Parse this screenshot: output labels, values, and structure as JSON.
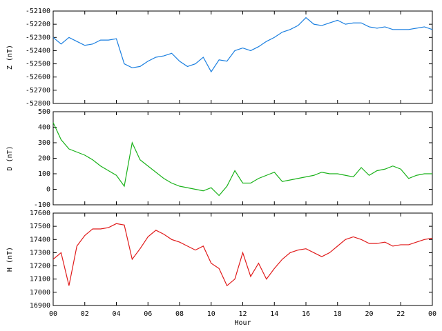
{
  "chart_data": [
    {
      "type": "line",
      "ylabel": "Z (nT)",
      "color": "#1a7fe0",
      "xlim": [
        0,
        24
      ],
      "x": [
        0,
        0.5,
        1,
        1.5,
        2,
        2.5,
        3,
        3.5,
        4,
        4.5,
        5,
        5.5,
        6,
        6.5,
        7,
        7.5,
        8,
        8.5,
        9,
        9.5,
        10,
        10.5,
        11,
        11.5,
        12,
        12.5,
        13,
        13.5,
        14,
        14.5,
        15,
        15.5,
        16,
        16.5,
        17,
        17.5,
        18,
        18.5,
        19,
        19.5,
        20,
        20.5,
        21,
        21.5,
        22,
        22.5,
        23,
        23.5,
        24
      ],
      "values": [
        -52300,
        -52350,
        -52300,
        -52330,
        -52360,
        -52350,
        -52320,
        -52320,
        -52310,
        -52500,
        -52530,
        -52520,
        -52480,
        -52450,
        -52440,
        -52420,
        -52480,
        -52520,
        -52500,
        -52450,
        -52560,
        -52470,
        -52480,
        -52400,
        -52380,
        -52400,
        -52370,
        -52330,
        -52300,
        -52260,
        -52240,
        -52210,
        -52150,
        -52200,
        -52210,
        -52190,
        -52170,
        -52200,
        -52190,
        -52190,
        -52220,
        -52230,
        -52220,
        -52240,
        -52240,
        -52240,
        -52230,
        -52220,
        -52240
      ],
      "ylim": [
        -52800,
        -52100
      ],
      "yticks": [
        -52800,
        -52700,
        -52600,
        -52500,
        -52400,
        -52300,
        -52200,
        -52100
      ]
    },
    {
      "type": "line",
      "ylabel": "D (nT)",
      "color": "#1ab21a",
      "xlim": [
        0,
        24
      ],
      "x": [
        0,
        0.5,
        1,
        1.5,
        2,
        2.5,
        3,
        3.5,
        4,
        4.5,
        5,
        5.5,
        6,
        6.5,
        7,
        7.5,
        8,
        8.5,
        9,
        9.5,
        10,
        10.5,
        11,
        11.5,
        12,
        12.5,
        13,
        13.5,
        14,
        14.5,
        15,
        15.5,
        16,
        16.5,
        17,
        17.5,
        18,
        18.5,
        19,
        19.5,
        20,
        20.5,
        21,
        21.5,
        22,
        22.5,
        23,
        23.5,
        24
      ],
      "values": [
        430,
        320,
        260,
        240,
        220,
        190,
        150,
        120,
        90,
        20,
        300,
        190,
        150,
        110,
        70,
        40,
        20,
        10,
        0,
        -10,
        10,
        -40,
        20,
        120,
        40,
        40,
        70,
        90,
        110,
        50,
        60,
        70,
        80,
        90,
        110,
        100,
        100,
        90,
        80,
        140,
        90,
        120,
        130,
        150,
        130,
        70,
        90,
        100,
        100
      ],
      "ylim": [
        -100,
        500
      ],
      "yticks": [
        -100,
        0,
        100,
        200,
        300,
        400,
        500
      ]
    },
    {
      "type": "line",
      "ylabel": "H (nT)",
      "xlabel": "Hour",
      "color": "#e01a1a",
      "xlim": [
        0,
        24
      ],
      "xticks": [
        {
          "value": 0,
          "label": "00"
        },
        {
          "value": 2,
          "label": "02"
        },
        {
          "value": 4,
          "label": "04"
        },
        {
          "value": 6,
          "label": "06"
        },
        {
          "value": 8,
          "label": "08"
        },
        10,
        12,
        14,
        16,
        18,
        20,
        22,
        {
          "value": 24,
          "label": "00"
        }
      ],
      "x": [
        0,
        0.5,
        1,
        1.5,
        2,
        2.5,
        3,
        3.5,
        4,
        4.5,
        5,
        5.5,
        6,
        6.5,
        7,
        7.5,
        8,
        8.5,
        9,
        9.5,
        10,
        10.5,
        11,
        11.5,
        12,
        12.5,
        13,
        13.5,
        14,
        14.5,
        15,
        15.5,
        16,
        16.5,
        17,
        17.5,
        18,
        18.5,
        19,
        19.5,
        20,
        20.5,
        21,
        21.5,
        22,
        22.5,
        23,
        23.5,
        24
      ],
      "values": [
        17250,
        17300,
        17050,
        17350,
        17430,
        17480,
        17480,
        17490,
        17520,
        17510,
        17250,
        17330,
        17420,
        17470,
        17440,
        17400,
        17380,
        17350,
        17320,
        17350,
        17220,
        17180,
        17050,
        17100,
        17300,
        17120,
        17220,
        17100,
        17180,
        17250,
        17300,
        17320,
        17330,
        17300,
        17270,
        17300,
        17350,
        17400,
        17420,
        17400,
        17370,
        17370,
        17380,
        17350,
        17360,
        17360,
        17380,
        17400,
        17410
      ],
      "ylim": [
        16900,
        17600
      ],
      "yticks": [
        16900,
        17000,
        17100,
        17200,
        17300,
        17400,
        17500,
        17600
      ]
    }
  ]
}
